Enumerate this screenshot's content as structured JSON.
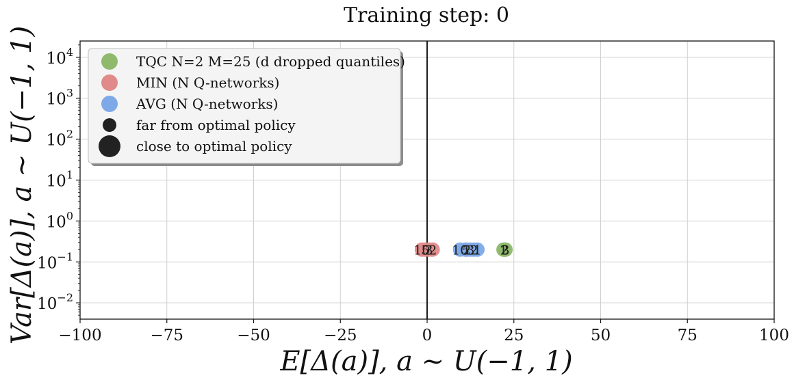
{
  "chart_data": {
    "type": "scatter",
    "title": "Training step: 0",
    "xlabel": "E[Δ(a)],    a ~ U(−1, 1)",
    "ylabel": "Var[Δ(a)],    a ~ U(−1, 1)",
    "xlim": [
      -100,
      100
    ],
    "ylim": [
      0.004,
      25000
    ],
    "yscale": "log",
    "grid": true,
    "x_ticks": [
      {
        "value": -100,
        "label": "−100"
      },
      {
        "value": -75,
        "label": "−75"
      },
      {
        "value": -50,
        "label": "−50"
      },
      {
        "value": -25,
        "label": "−25"
      },
      {
        "value": 0,
        "label": "0"
      },
      {
        "value": 25,
        "label": "25"
      },
      {
        "value": 50,
        "label": "50"
      },
      {
        "value": 75,
        "label": "75"
      },
      {
        "value": 100,
        "label": "100"
      }
    ],
    "y_ticks": [
      {
        "value": 0.01,
        "base": "10",
        "exp": "−2"
      },
      {
        "value": 0.1,
        "base": "10",
        "exp": "−1"
      },
      {
        "value": 1,
        "base": "10",
        "exp": "0"
      },
      {
        "value": 10,
        "base": "10",
        "exp": "1"
      },
      {
        "value": 100,
        "base": "10",
        "exp": "2"
      },
      {
        "value": 1000,
        "base": "10",
        "exp": "3"
      },
      {
        "value": 10000,
        "base": "10",
        "exp": "4"
      }
    ],
    "vline_x": 0,
    "legend_position": "upper-left",
    "legend": [
      {
        "label": "TQC N=2 M=25 (d dropped quantiles)",
        "color": "#8fba6e",
        "kind": "series"
      },
      {
        "label": "MIN (N Q-networks)",
        "color": "#e08a8a",
        "kind": "series"
      },
      {
        "label": "AVG (N Q-networks)",
        "color": "#7ea9e8",
        "kind": "series"
      },
      {
        "label": "far from optimal policy",
        "color": "#222222",
        "kind": "size-small"
      },
      {
        "label": "close to optimal policy",
        "color": "#222222",
        "kind": "size-large"
      }
    ],
    "series": [
      {
        "name": "TQC N=2 M=25 (d dropped quantiles)",
        "color": "#8fba6e",
        "points": [
          {
            "x": 22.0,
            "y": 0.2,
            "label": "1"
          },
          {
            "x": 22.3,
            "y": 0.2,
            "label": "2"
          },
          {
            "x": 22.6,
            "y": 0.2,
            "label": "3"
          }
        ]
      },
      {
        "name": "MIN (N Q-networks)",
        "color": "#e08a8a",
        "points": [
          {
            "x": -1.5,
            "y": 0.2,
            "label": "10"
          },
          {
            "x": -0.5,
            "y": 0.2,
            "label": "5"
          },
          {
            "x": 0.5,
            "y": 0.2,
            "label": "3"
          },
          {
            "x": 1.6,
            "y": 0.2,
            "label": "2"
          },
          {
            "x": 11.5,
            "y": 0.2,
            "label": "2"
          }
        ]
      },
      {
        "name": "AVG (N Q-networks)",
        "color": "#7ea9e8",
        "points": [
          {
            "x": 9.5,
            "y": 0.2,
            "label": "10"
          },
          {
            "x": 11.0,
            "y": 0.2,
            "label": "5"
          },
          {
            "x": 12.5,
            "y": 0.2,
            "label": "3"
          },
          {
            "x": 13.5,
            "y": 0.2,
            "label": "2"
          },
          {
            "x": 14.5,
            "y": 0.2,
            "label": "1"
          }
        ]
      }
    ]
  }
}
